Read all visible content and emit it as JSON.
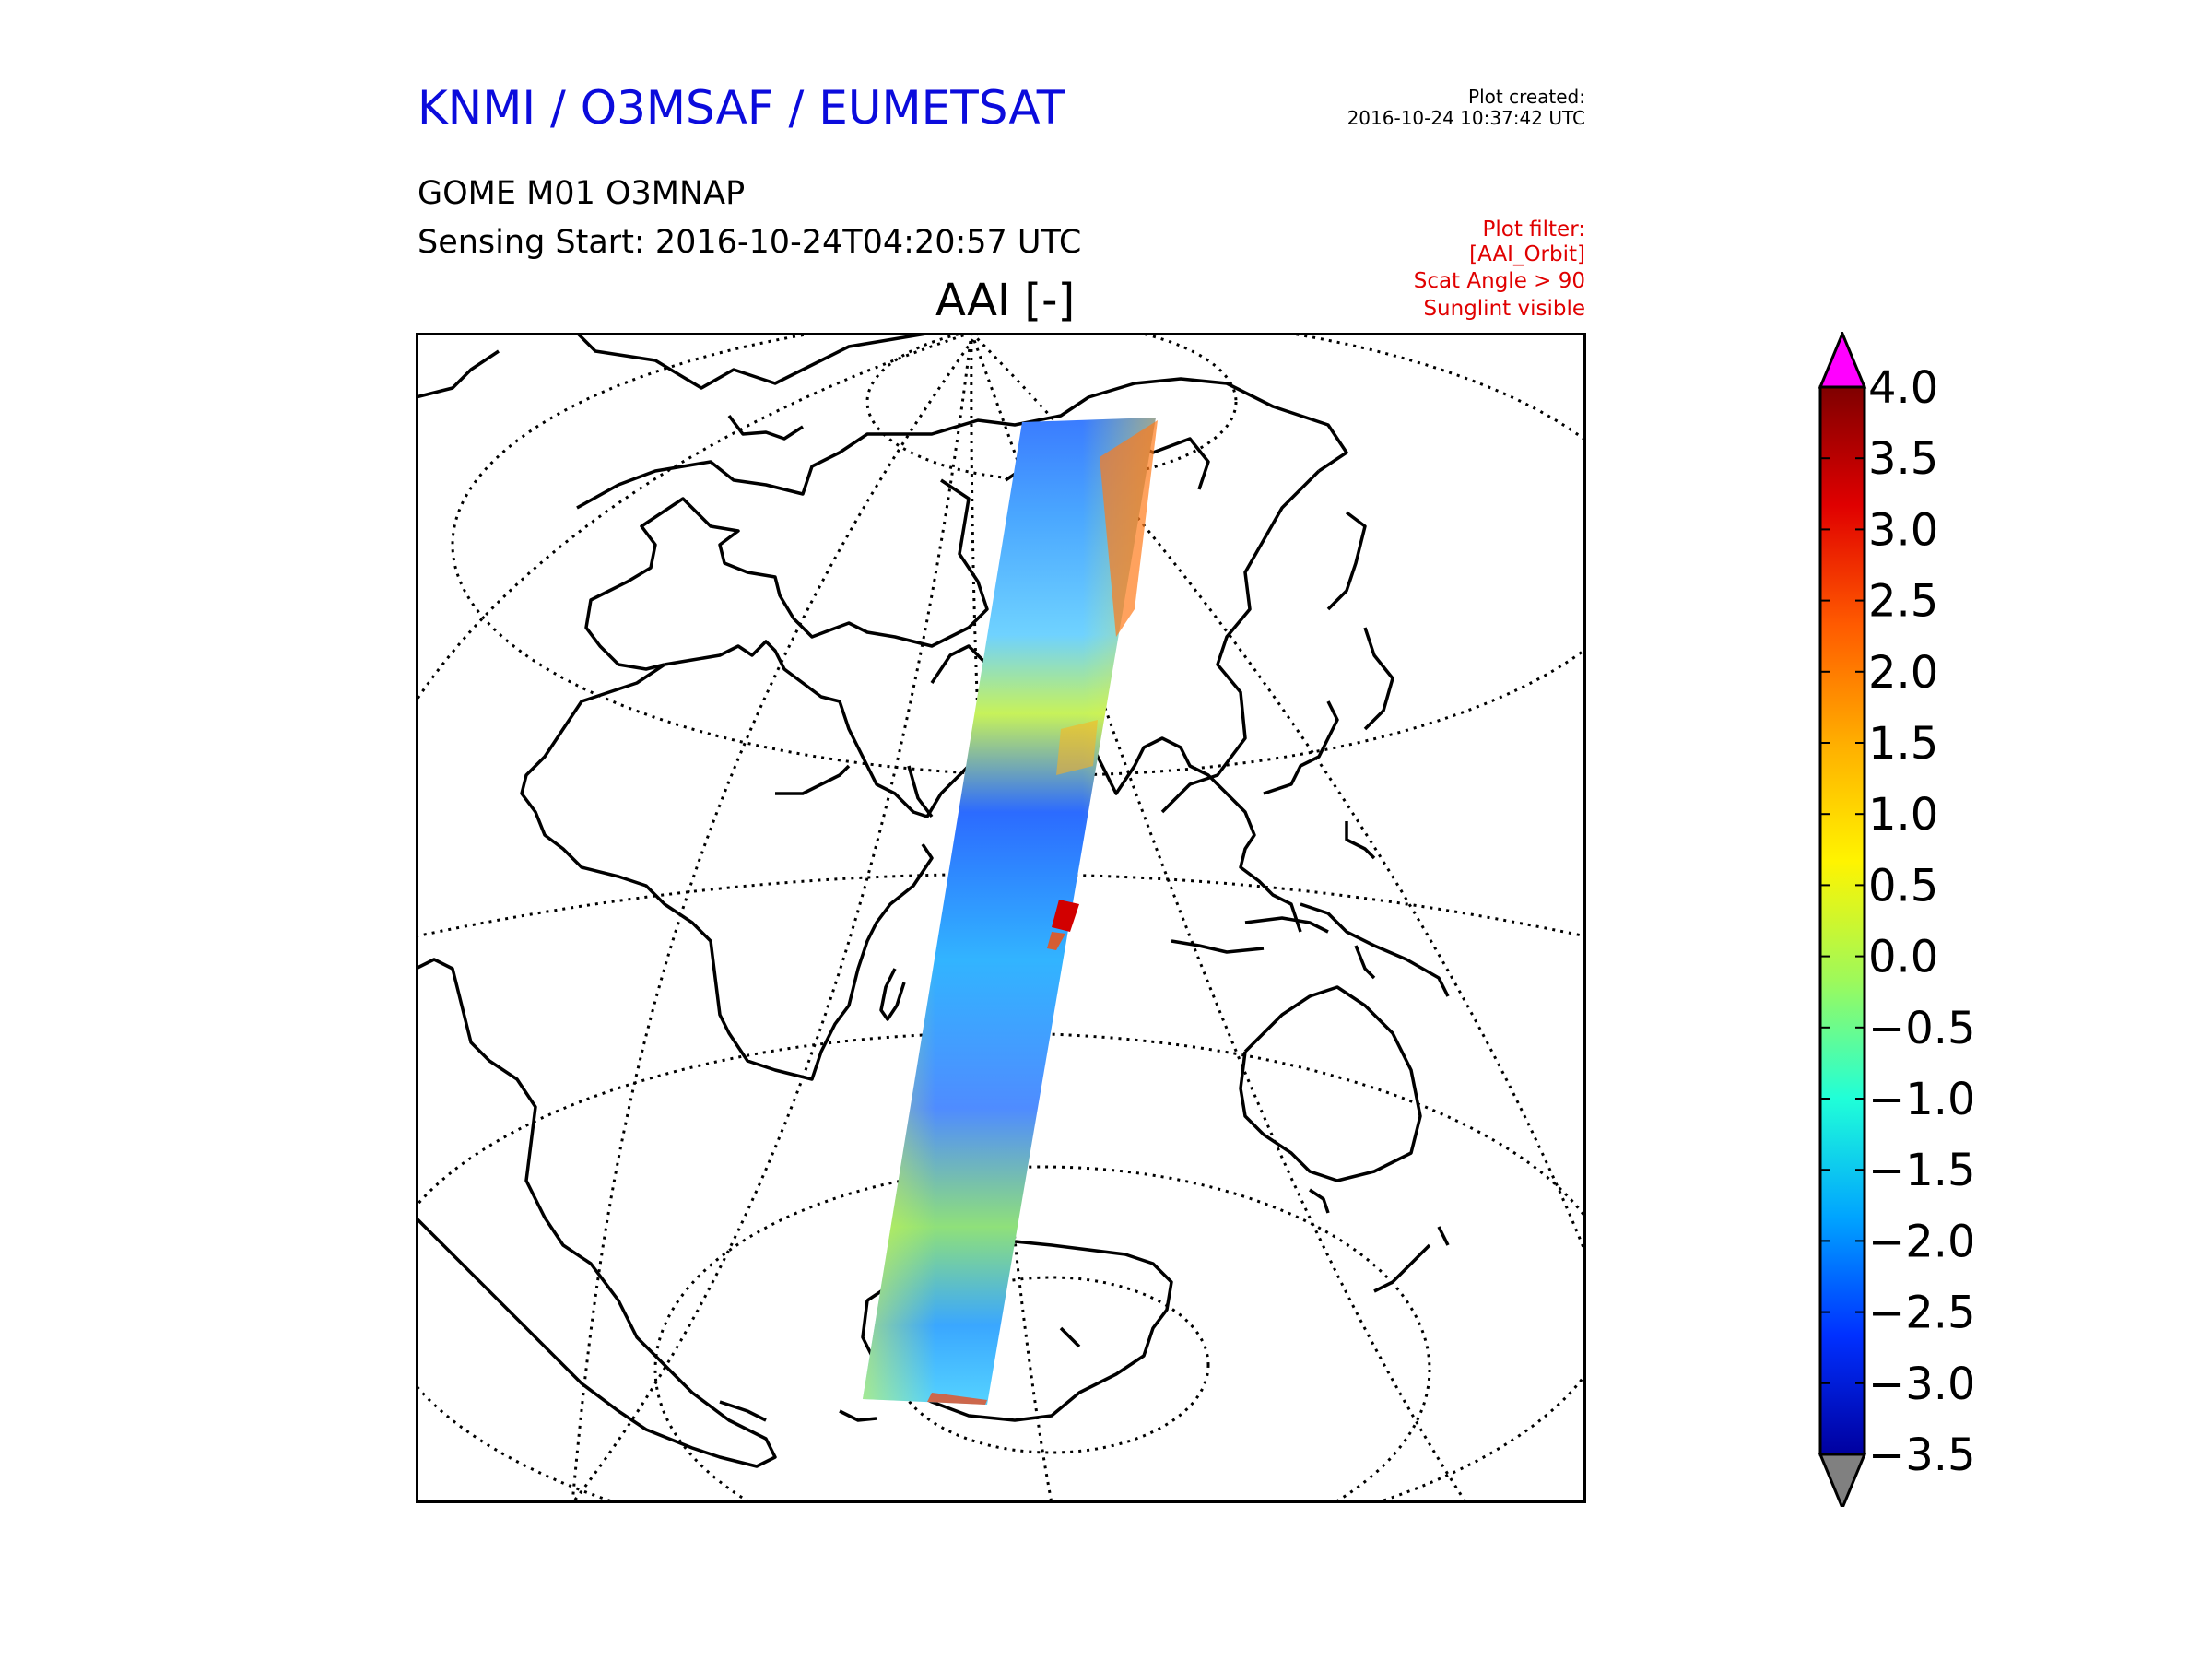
{
  "header": {
    "organization": "KNMI / O3MSAF / EUMETSAT",
    "product": "GOME M01 O3MNAP",
    "sensing_start": "Sensing Start: 2016-10-24T04:20:57 UTC",
    "map_title": "AAI [-]",
    "plot_created_label": "Plot created:",
    "plot_created_time": "2016-10-24 10:37:42 UTC",
    "plot_filter": [
      "Plot filter:",
      "[AAI_Orbit]",
      "Scat Angle > 90",
      "Sunglint visible"
    ]
  },
  "colors": {
    "title": "#0b0bdc",
    "filter_text": "#e00000",
    "over_extension": "#ff00ff",
    "under_extension": "#808080"
  },
  "colorbar": {
    "min": -3.5,
    "max": 4.0,
    "ticks": [
      "4.0",
      "3.5",
      "3.0",
      "2.5",
      "2.0",
      "1.5",
      "1.0",
      "0.5",
      "0.0",
      "−0.5",
      "−1.0",
      "−1.5",
      "−2.0",
      "−2.5",
      "−3.0",
      "−3.5"
    ],
    "colormap": [
      "#7f0000",
      "#e00000",
      "#ff5a00",
      "#ffae00",
      "#fff400",
      "#9ef95a",
      "#20ffd8",
      "#00a4ff",
      "#0030ff",
      "#00009f"
    ]
  }
}
